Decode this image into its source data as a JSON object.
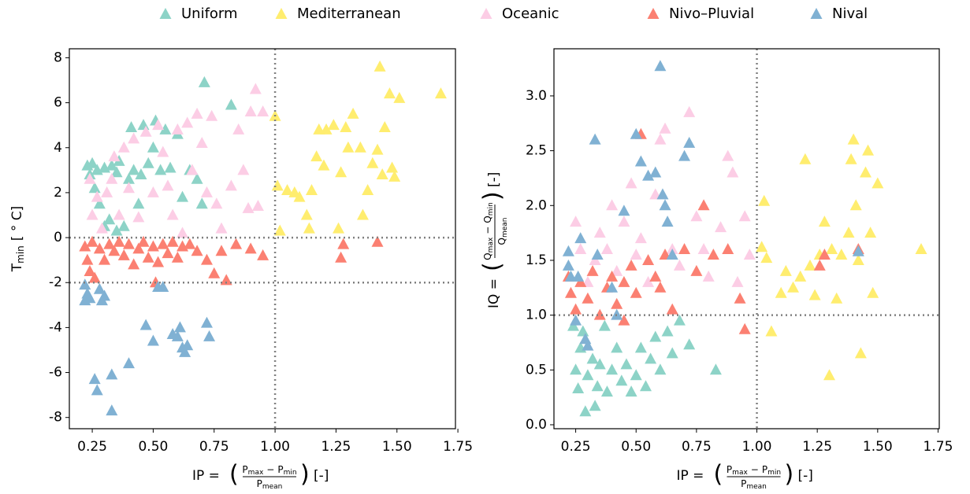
{
  "chart_data": [
    {
      "type": "scatter",
      "xlabel": {
        "prefix": "IP =",
        "numerator": [
          "P",
          "max",
          "−",
          "P",
          "min"
        ],
        "denominator": [
          "P",
          "mean"
        ],
        "suffix": "[-]"
      },
      "ylabel": {
        "base": "T",
        "sub": "min",
        "suffix": "[ ° C]"
      },
      "xlim": [
        0.156,
        1.74
      ],
      "ylim": [
        -8.5,
        8.4
      ],
      "xticks": [
        0.25,
        {
          "value": 0.5,
          "label": "0.50"
        },
        0.75,
        {
          "value": 1.0,
          "label": "1.00"
        },
        1.25,
        {
          "value": 1.5,
          "label": "1.50"
        },
        1.75
      ],
      "yticks": [
        -8,
        -6,
        -4,
        -2,
        0,
        2,
        4,
        6,
        8
      ],
      "vlines": [
        1.0
      ],
      "hlines": [
        0,
        -2
      ],
      "series": [
        {
          "name": "Uniform",
          "color": "#8dd3c7",
          "x": [
            0.23,
            0.24,
            0.25,
            0.26,
            0.27,
            0.28,
            0.3,
            0.32,
            0.33,
            0.35,
            0.36,
            0.38,
            0.4,
            0.41,
            0.42,
            0.44,
            0.45,
            0.46,
            0.48,
            0.5,
            0.51,
            0.53,
            0.55,
            0.57,
            0.6,
            0.62,
            0.65,
            0.68,
            0.7,
            0.71,
            0.82,
            0.35,
            0.3
          ],
          "values": [
            3.2,
            2.8,
            3.3,
            2.2,
            3.0,
            1.5,
            3.1,
            0.8,
            3.2,
            2.9,
            3.4,
            0.5,
            2.6,
            4.9,
            3.0,
            1.5,
            2.8,
            5.0,
            3.3,
            4.0,
            5.2,
            3.0,
            4.8,
            3.1,
            4.6,
            1.8,
            3.0,
            2.6,
            1.5,
            6.9,
            5.9,
            0.3,
            0.5
          ]
        },
        {
          "name": "Mediterranean",
          "color": "#ffed6f",
          "x": [
            1.0,
            1.01,
            1.02,
            1.05,
            1.08,
            1.1,
            1.13,
            1.14,
            1.15,
            1.17,
            1.2,
            1.21,
            1.24,
            1.27,
            1.29,
            1.3,
            1.32,
            1.35,
            1.36,
            1.38,
            1.4,
            1.42,
            1.43,
            1.44,
            1.45,
            1.47,
            1.48,
            1.49,
            1.51,
            1.68,
            1.26,
            1.18
          ],
          "values": [
            5.4,
            2.3,
            0.3,
            2.1,
            2.0,
            1.8,
            1.0,
            0.4,
            2.1,
            3.6,
            3.2,
            4.8,
            5.0,
            2.9,
            4.9,
            4.0,
            5.5,
            4.0,
            1.0,
            2.1,
            3.3,
            3.9,
            7.6,
            2.8,
            4.9,
            6.4,
            3.1,
            2.7,
            6.2,
            6.4,
            0.4,
            4.8
          ]
        },
        {
          "name": "Oceanic",
          "color": "#fccde5",
          "x": [
            0.24,
            0.25,
            0.27,
            0.29,
            0.31,
            0.33,
            0.34,
            0.36,
            0.38,
            0.4,
            0.42,
            0.44,
            0.47,
            0.5,
            0.52,
            0.54,
            0.56,
            0.58,
            0.6,
            0.62,
            0.64,
            0.66,
            0.68,
            0.7,
            0.72,
            0.74,
            0.76,
            0.78,
            0.82,
            0.85,
            0.87,
            0.9,
            0.92,
            0.93,
            0.95,
            0.89
          ],
          "values": [
            2.6,
            1.0,
            1.8,
            0.4,
            2.0,
            2.6,
            3.6,
            1.0,
            4.0,
            2.2,
            4.4,
            0.9,
            4.7,
            2.0,
            5.0,
            3.8,
            2.3,
            1.0,
            4.8,
            0.2,
            5.1,
            3.0,
            5.5,
            4.2,
            2.0,
            5.4,
            1.5,
            0.4,
            2.3,
            4.8,
            3.0,
            5.6,
            6.6,
            1.4,
            5.6,
            1.3
          ]
        },
        {
          "name": "Nivo–Pluvial",
          "color": "#fb8072",
          "x": [
            0.22,
            0.23,
            0.24,
            0.25,
            0.26,
            0.28,
            0.3,
            0.32,
            0.34,
            0.36,
            0.38,
            0.4,
            0.42,
            0.44,
            0.46,
            0.48,
            0.5,
            0.52,
            0.54,
            0.56,
            0.58,
            0.6,
            0.62,
            0.65,
            0.68,
            0.72,
            0.75,
            0.78,
            0.8,
            0.84,
            0.9,
            0.95,
            1.27,
            1.28,
            1.42,
            0.51
          ],
          "values": [
            -0.4,
            -1.0,
            -1.5,
            -0.2,
            -1.8,
            -0.5,
            -1.0,
            -0.3,
            -0.6,
            -0.2,
            -0.8,
            -0.3,
            -1.2,
            -0.5,
            -0.2,
            -0.9,
            -0.4,
            -1.1,
            -0.3,
            -0.7,
            -0.2,
            -0.9,
            -0.4,
            -0.3,
            -0.6,
            -1.0,
            -1.6,
            -0.6,
            -1.9,
            -0.3,
            -0.5,
            -0.8,
            -0.9,
            -0.3,
            -0.2,
            -2.0
          ]
        },
        {
          "name": "Nival",
          "color": "#80b1d3",
          "x": [
            0.22,
            0.22,
            0.23,
            0.24,
            0.26,
            0.27,
            0.28,
            0.29,
            0.3,
            0.33,
            0.33,
            0.4,
            0.47,
            0.5,
            0.52,
            0.54,
            0.58,
            0.6,
            0.61,
            0.62,
            0.63,
            0.64,
            0.72,
            0.73
          ],
          "values": [
            -2.1,
            -2.8,
            -2.5,
            -2.7,
            -6.3,
            -6.8,
            -2.3,
            -2.8,
            -2.6,
            -6.1,
            -7.7,
            -5.6,
            -3.9,
            -4.6,
            -2.2,
            -2.2,
            -4.3,
            -4.4,
            -4.0,
            -4.9,
            -5.1,
            -4.8,
            -3.8,
            -4.4
          ]
        }
      ],
      "legend": "upper center"
    },
    {
      "type": "scatter",
      "xlabel": {
        "prefix": "IP =",
        "numerator": [
          "P",
          "max",
          "−",
          "P",
          "min"
        ],
        "denominator": [
          "P",
          "mean"
        ],
        "suffix": "[-]"
      },
      "ylabel": {
        "prefix": "IQ =",
        "numerator": [
          "Q",
          "max",
          "−",
          "Q",
          "min"
        ],
        "denominator": [
          "Q",
          "mean"
        ],
        "suffix": "[-]"
      },
      "xlim": [
        0.16,
        1.755
      ],
      "ylim": [
        -0.036,
        3.43
      ],
      "xticks": [
        0.25,
        {
          "value": 0.5,
          "label": "0.50"
        },
        0.75,
        {
          "value": 1.0,
          "label": "1.00"
        },
        1.25,
        {
          "value": 1.5,
          "label": "1.50"
        },
        1.75
      ],
      "yticks": [
        {
          "value": 0,
          "label": "0.0"
        },
        0.5,
        {
          "value": 1,
          "label": "1.0"
        },
        1.5,
        {
          "value": 2,
          "label": "2.0"
        },
        2.5,
        {
          "value": 3,
          "label": "3.0"
        }
      ],
      "vlines": [
        1.0
      ],
      "hlines": [
        1.0
      ],
      "series": [
        {
          "color": "#8dd3c7",
          "x": [
            0.25,
            0.26,
            0.27,
            0.28,
            0.29,
            0.3,
            0.32,
            0.33,
            0.34,
            0.35,
            0.37,
            0.38,
            0.4,
            0.42,
            0.44,
            0.46,
            0.48,
            0.5,
            0.52,
            0.54,
            0.56,
            0.58,
            0.6,
            0.63,
            0.65,
            0.68,
            0.72,
            0.83,
            0.24
          ],
          "values": [
            0.5,
            0.33,
            0.7,
            0.85,
            0.12,
            0.45,
            0.6,
            0.17,
            0.35,
            0.55,
            0.9,
            0.3,
            0.5,
            0.7,
            0.4,
            0.55,
            0.3,
            0.45,
            0.7,
            0.35,
            0.6,
            0.8,
            0.5,
            0.85,
            0.65,
            0.95,
            0.73,
            0.5,
            0.9
          ]
        },
        {
          "color": "#ffed6f",
          "x": [
            1.02,
            1.03,
            1.04,
            1.06,
            1.1,
            1.12,
            1.15,
            1.18,
            1.2,
            1.22,
            1.24,
            1.26,
            1.28,
            1.3,
            1.31,
            1.33,
            1.35,
            1.38,
            1.4,
            1.41,
            1.42,
            1.43,
            1.45,
            1.46,
            1.47,
            1.48,
            1.5,
            1.68,
            1.39
          ],
          "values": [
            1.62,
            2.04,
            1.52,
            0.85,
            1.2,
            1.4,
            1.25,
            1.35,
            2.42,
            1.45,
            1.18,
            1.55,
            1.85,
            0.45,
            1.6,
            1.15,
            1.55,
            1.75,
            2.6,
            2.0,
            1.5,
            0.65,
            2.3,
            2.5,
            1.75,
            1.2,
            2.2,
            1.6,
            2.42
          ]
        },
        {
          "color": "#fccde5",
          "x": [
            0.25,
            0.27,
            0.3,
            0.33,
            0.35,
            0.38,
            0.4,
            0.42,
            0.45,
            0.48,
            0.5,
            0.52,
            0.55,
            0.58,
            0.62,
            0.65,
            0.68,
            0.72,
            0.75,
            0.78,
            0.8,
            0.85,
            0.88,
            0.9,
            0.92,
            0.95,
            0.97,
            0.6
          ],
          "values": [
            1.85,
            1.6,
            1.3,
            1.5,
            1.75,
            1.6,
            2.0,
            1.4,
            1.85,
            2.2,
            1.55,
            1.7,
            1.3,
            2.1,
            2.7,
            1.6,
            1.45,
            2.85,
            1.9,
            1.6,
            1.35,
            1.8,
            2.45,
            2.3,
            1.3,
            1.9,
            1.55,
            2.6
          ]
        },
        {
          "color": "#fb8072",
          "x": [
            0.22,
            0.23,
            0.25,
            0.27,
            0.3,
            0.32,
            0.35,
            0.38,
            0.4,
            0.42,
            0.45,
            0.48,
            0.5,
            0.52,
            0.55,
            0.58,
            0.6,
            0.62,
            0.65,
            0.7,
            0.75,
            0.78,
            0.82,
            0.88,
            0.93,
            0.95,
            1.26,
            1.28,
            1.42,
            0.45
          ],
          "values": [
            1.35,
            1.2,
            1.05,
            1.3,
            1.15,
            1.4,
            1.0,
            1.25,
            1.35,
            1.1,
            1.3,
            1.45,
            1.2,
            2.65,
            1.5,
            1.35,
            1.25,
            1.55,
            1.05,
            1.6,
            1.4,
            2.0,
            1.55,
            1.6,
            1.15,
            0.87,
            1.45,
            1.55,
            1.6,
            0.95
          ]
        },
        {
          "color": "#80b1d3",
          "x": [
            0.22,
            0.22,
            0.23,
            0.25,
            0.26,
            0.27,
            0.29,
            0.3,
            0.33,
            0.34,
            0.4,
            0.42,
            0.45,
            0.5,
            0.52,
            0.55,
            0.58,
            0.6,
            0.61,
            0.62,
            0.63,
            0.65,
            0.7,
            0.72,
            1.42
          ],
          "values": [
            1.45,
            1.58,
            1.35,
            0.95,
            1.35,
            1.7,
            0.78,
            0.72,
            2.6,
            1.55,
            1.25,
            1.0,
            1.95,
            2.65,
            2.4,
            2.27,
            2.3,
            3.27,
            2.1,
            2.0,
            1.85,
            1.55,
            2.45,
            2.57,
            1.58
          ]
        }
      ]
    }
  ]
}
